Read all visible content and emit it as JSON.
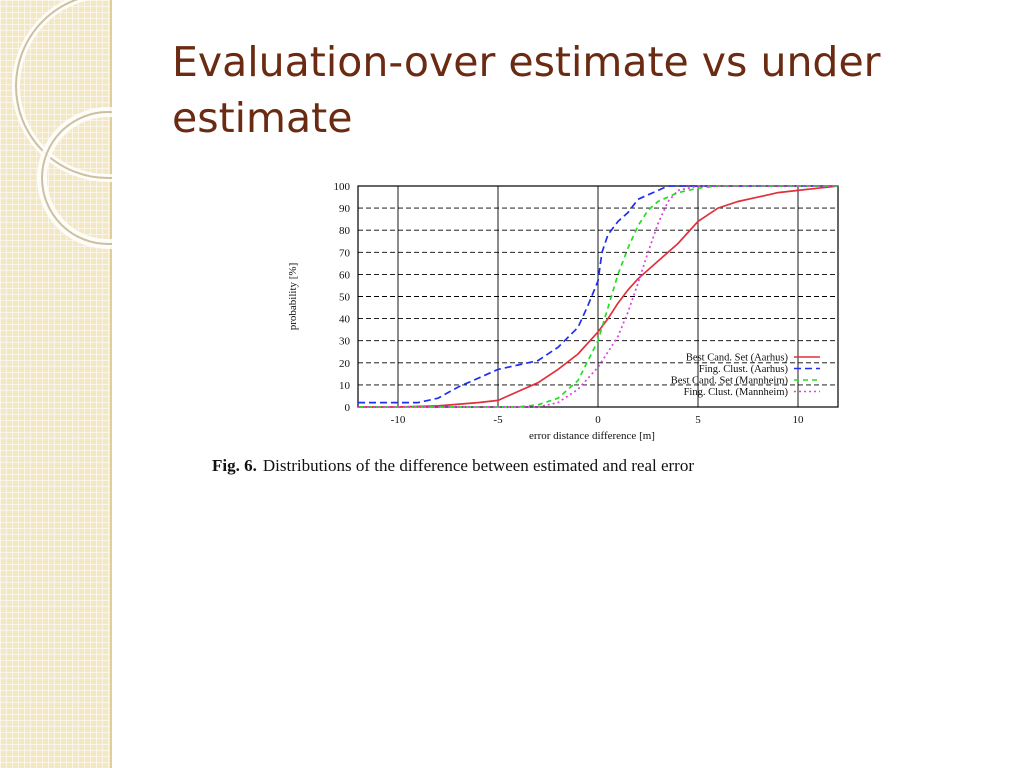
{
  "slide": {
    "title": "Evaluation-over estimate vs under estimate"
  },
  "figure": {
    "caption_label": "Fig. 6.",
    "caption_text": "Distributions of the difference between estimated and real error"
  },
  "colors": {
    "title": "#6b2a12",
    "strip": "#f4e7c3"
  },
  "chart_data": {
    "type": "line",
    "xlabel": "error distance difference [m]",
    "ylabel": "probability [%]",
    "xlim": [
      -12,
      12
    ],
    "ylim": [
      0,
      100
    ],
    "xticks": [
      -10,
      -5,
      0,
      5,
      10
    ],
    "yticks": [
      0,
      10,
      20,
      30,
      40,
      50,
      60,
      70,
      80,
      90,
      100
    ],
    "grid": true,
    "legend_position": "bottom-right",
    "series": [
      {
        "name": "Best Cand. Set (Aarhus)",
        "color": "#e0303a",
        "dash": "solid",
        "points": [
          [
            -12,
            0
          ],
          [
            -10,
            0
          ],
          [
            -8,
            0.5
          ],
          [
            -6,
            2
          ],
          [
            -5,
            3
          ],
          [
            -4,
            7
          ],
          [
            -3,
            11
          ],
          [
            -2,
            17
          ],
          [
            -1,
            24
          ],
          [
            0,
            34
          ],
          [
            0.5,
            40
          ],
          [
            1,
            47
          ],
          [
            1.5,
            53
          ],
          [
            2,
            58
          ],
          [
            3,
            66
          ],
          [
            4,
            74
          ],
          [
            5,
            84
          ],
          [
            6,
            90
          ],
          [
            7,
            93
          ],
          [
            8,
            95
          ],
          [
            9,
            97
          ],
          [
            10,
            98
          ],
          [
            11,
            99
          ],
          [
            12,
            100
          ]
        ]
      },
      {
        "name": "Fing. Clust. (Aarhus)",
        "color": "#1e2ff0",
        "dash": "7,4",
        "points": [
          [
            -12,
            2
          ],
          [
            -9,
            2
          ],
          [
            -8,
            4
          ],
          [
            -7,
            9
          ],
          [
            -6,
            13
          ],
          [
            -5,
            17
          ],
          [
            -4,
            19
          ],
          [
            -3,
            21
          ],
          [
            -2,
            27
          ],
          [
            -1,
            36
          ],
          [
            -0.5,
            46
          ],
          [
            0,
            57
          ],
          [
            0.2,
            70
          ],
          [
            0.5,
            78
          ],
          [
            1,
            84
          ],
          [
            1.5,
            88
          ],
          [
            2,
            94
          ],
          [
            3,
            98
          ],
          [
            3.5,
            100
          ],
          [
            12,
            100
          ]
        ]
      },
      {
        "name": "Best Cand. Set (Mannheim)",
        "color": "#22dd22",
        "dash": "5,4",
        "points": [
          [
            -12,
            0
          ],
          [
            -4,
            0
          ],
          [
            -3,
            1
          ],
          [
            -2,
            4
          ],
          [
            -1,
            12
          ],
          [
            0,
            30
          ],
          [
            0.5,
            45
          ],
          [
            1,
            60
          ],
          [
            1.5,
            72
          ],
          [
            2,
            82
          ],
          [
            2.5,
            89
          ],
          [
            3,
            93
          ],
          [
            4,
            97
          ],
          [
            5,
            99
          ],
          [
            6,
            100
          ],
          [
            12,
            100
          ]
        ]
      },
      {
        "name": "Fing. Clust. (Mannheim)",
        "color": "#e040e0",
        "dash": "2,3",
        "points": [
          [
            -12,
            0
          ],
          [
            -3,
            0
          ],
          [
            -2,
            2
          ],
          [
            -1,
            8
          ],
          [
            0,
            18
          ],
          [
            0.5,
            25
          ],
          [
            1,
            32
          ],
          [
            1.5,
            43
          ],
          [
            2,
            56
          ],
          [
            2.5,
            70
          ],
          [
            3,
            83
          ],
          [
            3.5,
            93
          ],
          [
            4,
            98
          ],
          [
            5,
            100
          ],
          [
            12,
            100
          ]
        ]
      }
    ]
  }
}
